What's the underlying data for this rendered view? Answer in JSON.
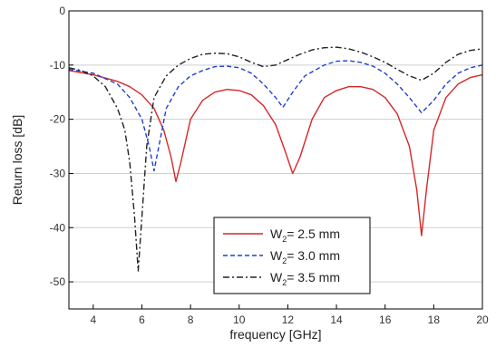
{
  "chart_data": {
    "type": "line",
    "xlabel": "frequency [GHz]",
    "ylabel": "Return loss [dB]",
    "xlim": [
      3,
      20
    ],
    "ylim": [
      -55,
      0
    ],
    "x_ticks": [
      4,
      6,
      8,
      10,
      12,
      14,
      16,
      18,
      20
    ],
    "y_ticks": [
      0,
      -10,
      -20,
      -30,
      -40,
      -50
    ],
    "grid": "horizontal",
    "legend_position": "bottom-center",
    "series": [
      {
        "name": "W2= 2.5 mm",
        "legend_main": "W",
        "legend_sub": "2",
        "legend_rest": "= 2.5 mm",
        "color": "#d62728",
        "style": "solid",
        "points": [
          [
            3,
            -11
          ],
          [
            4,
            -11.8
          ],
          [
            5,
            -13
          ],
          [
            5.5,
            -14
          ],
          [
            6,
            -15.5
          ],
          [
            6.5,
            -18
          ],
          [
            6.9,
            -22
          ],
          [
            7.2,
            -27
          ],
          [
            7.4,
            -31.5
          ],
          [
            7.6,
            -28
          ],
          [
            8,
            -20
          ],
          [
            8.5,
            -16.5
          ],
          [
            9,
            -15
          ],
          [
            9.5,
            -14.5
          ],
          [
            10,
            -14.7
          ],
          [
            10.5,
            -15.5
          ],
          [
            11,
            -17.5
          ],
          [
            11.5,
            -21
          ],
          [
            11.9,
            -26
          ],
          [
            12.2,
            -30
          ],
          [
            12.5,
            -27
          ],
          [
            13,
            -20
          ],
          [
            13.5,
            -16
          ],
          [
            14,
            -14.7
          ],
          [
            14.5,
            -14
          ],
          [
            15,
            -14
          ],
          [
            15.5,
            -14.5
          ],
          [
            16,
            -16
          ],
          [
            16.5,
            -19
          ],
          [
            17,
            -25
          ],
          [
            17.3,
            -33
          ],
          [
            17.5,
            -41.5
          ],
          [
            17.7,
            -33
          ],
          [
            18,
            -22
          ],
          [
            18.5,
            -16
          ],
          [
            19,
            -13.5
          ],
          [
            19.5,
            -12.3
          ],
          [
            20,
            -11.8
          ]
        ]
      },
      {
        "name": "W2= 3.0 mm",
        "legend_main": "W",
        "legend_sub": "2",
        "legend_rest": "= 3.0 mm",
        "color": "#1f3fd6",
        "style": "dashed",
        "points": [
          [
            3,
            -10.8
          ],
          [
            4,
            -11.5
          ],
          [
            5,
            -13.5
          ],
          [
            5.5,
            -16
          ],
          [
            6,
            -20
          ],
          [
            6.3,
            -25
          ],
          [
            6.5,
            -29.5
          ],
          [
            6.7,
            -25
          ],
          [
            7,
            -18
          ],
          [
            7.5,
            -14
          ],
          [
            8,
            -12
          ],
          [
            8.5,
            -11
          ],
          [
            9,
            -10.3
          ],
          [
            9.5,
            -10.2
          ],
          [
            10,
            -10.5
          ],
          [
            10.5,
            -11.5
          ],
          [
            11,
            -13.5
          ],
          [
            11.5,
            -16
          ],
          [
            11.8,
            -17.8
          ],
          [
            12.2,
            -15
          ],
          [
            12.7,
            -12
          ],
          [
            13.5,
            -10
          ],
          [
            14,
            -9.3
          ],
          [
            14.5,
            -9.2
          ],
          [
            15,
            -9.5
          ],
          [
            15.5,
            -10.2
          ],
          [
            16,
            -11.5
          ],
          [
            16.5,
            -13.5
          ],
          [
            17,
            -16
          ],
          [
            17.5,
            -18.8
          ],
          [
            18,
            -16.5
          ],
          [
            18.5,
            -13.5
          ],
          [
            19,
            -11.5
          ],
          [
            19.5,
            -10.5
          ],
          [
            20,
            -10
          ]
        ]
      },
      {
        "name": "W2= 3.5 mm",
        "legend_main": "W",
        "legend_sub": "2",
        "legend_rest": "= 3.5 mm",
        "color": "#222222",
        "style": "dashdot",
        "points": [
          [
            3,
            -10.5
          ],
          [
            3.5,
            -11
          ],
          [
            4,
            -12
          ],
          [
            4.5,
            -14
          ],
          [
            5,
            -18
          ],
          [
            5.3,
            -22
          ],
          [
            5.5,
            -28
          ],
          [
            5.7,
            -38
          ],
          [
            5.85,
            -48
          ],
          [
            6.0,
            -38
          ],
          [
            6.2,
            -25
          ],
          [
            6.5,
            -16
          ],
          [
            7,
            -12
          ],
          [
            7.5,
            -10
          ],
          [
            8,
            -8.8
          ],
          [
            8.5,
            -8
          ],
          [
            9,
            -7.8
          ],
          [
            9.5,
            -7.9
          ],
          [
            10,
            -8.5
          ],
          [
            10.5,
            -9.5
          ],
          [
            11,
            -10.3
          ],
          [
            11.5,
            -10
          ],
          [
            12,
            -9
          ],
          [
            12.5,
            -8
          ],
          [
            13,
            -7.2
          ],
          [
            13.5,
            -6.8
          ],
          [
            14,
            -6.7
          ],
          [
            14.5,
            -7
          ],
          [
            15,
            -7.6
          ],
          [
            15.5,
            -8.5
          ],
          [
            16,
            -9.5
          ],
          [
            16.5,
            -10.8
          ],
          [
            17,
            -12
          ],
          [
            17.5,
            -12.8
          ],
          [
            18,
            -11.5
          ],
          [
            18.5,
            -9.5
          ],
          [
            19,
            -8
          ],
          [
            19.5,
            -7.3
          ],
          [
            20,
            -7
          ]
        ]
      }
    ]
  }
}
